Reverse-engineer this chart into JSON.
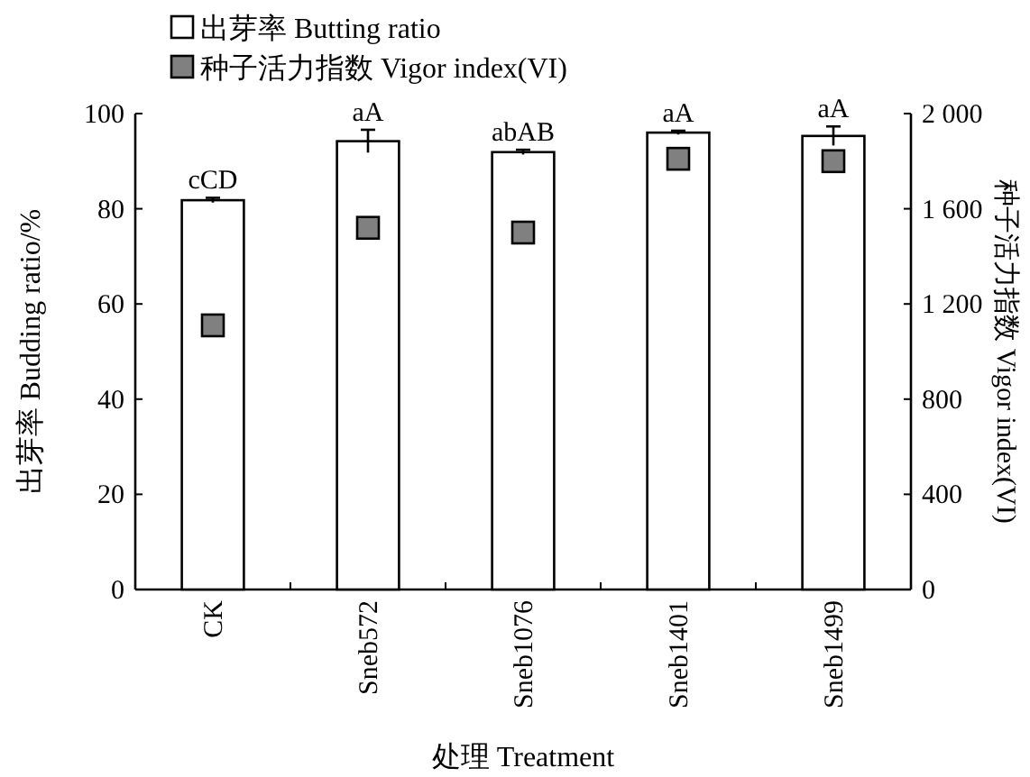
{
  "chart_data": {
    "type": "bar",
    "categories": [
      "CK",
      "Sneb572",
      "Sneb1076",
      "Sneb1401",
      "Sneb1499"
    ],
    "xlabel": "处理 Treatment",
    "ylabel": "出芽率 Budding ratio/%",
    "y2label": "种子活力指数 Vigor index(VI)",
    "series": [
      {
        "name": "出芽率 Butting ratio",
        "color": "#ffffff",
        "values": [
          81.8,
          94.2,
          91.9,
          96.0,
          95.3
        ],
        "errors": [
          0.5,
          2.4,
          0.5,
          0.4,
          2.0
        ]
      },
      {
        "name": "种子活力指数 Vigor index(VI)",
        "type": "scatter",
        "axis": "y2",
        "marker": "square",
        "color": "#808080",
        "values": [
          1110,
          1520,
          1500,
          1810,
          1800
        ]
      }
    ],
    "ylim": [
      0,
      100
    ],
    "yticks": [
      0,
      20,
      40,
      60,
      80,
      100
    ],
    "y2lim": [
      0,
      2000
    ],
    "y2ticks": [
      0,
      400,
      800,
      {
        "value": 1200,
        "label": "1 200"
      },
      {
        "value": 1600,
        "label": "1 600"
      },
      {
        "value": 2000,
        "label": "2 000"
      }
    ],
    "annotations": [
      {
        "text": "cCD",
        "x": "CK",
        "y": 82.3
      },
      {
        "text": "aA",
        "x": "Sneb572",
        "y": 96.6
      },
      {
        "text": "abAB",
        "x": "Sneb1076",
        "y": 92.4
      },
      {
        "text": "aA",
        "x": "Sneb1401",
        "y": 96.4
      },
      {
        "text": "aA",
        "x": "Sneb1499",
        "y": 97.3
      }
    ],
    "legend": "top",
    "grid": false
  }
}
